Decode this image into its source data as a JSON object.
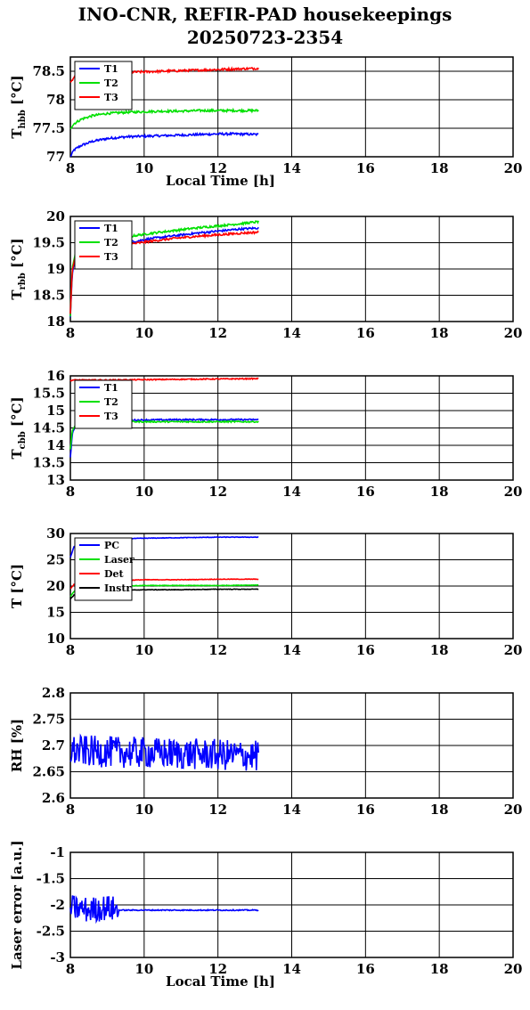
{
  "title": "INO-CNR, REFIR-PAD housekeepings",
  "subtitle": "20250723-2354",
  "chart_data": [
    {
      "type": "line",
      "ylabel_main": "T",
      "ylabel_sub": "hbb",
      "ylabel_unit": "[°C]",
      "xlabel": "Local Time [h]",
      "xlim": [
        8,
        20
      ],
      "ylim": [
        77,
        78.75
      ],
      "yticks": [
        77,
        77.5,
        78,
        78.5
      ],
      "xticks": [
        8,
        10,
        12,
        14,
        16,
        18,
        20
      ],
      "grid": true,
      "legend": "top-left",
      "series": [
        {
          "name": "T1",
          "color": "#0000ff",
          "x": [
            8.0,
            8.1,
            8.3,
            8.6,
            9.0,
            9.5,
            10.0,
            10.5,
            11.0,
            11.5,
            12.0,
            12.5,
            13.1
          ],
          "y": [
            77.0,
            77.12,
            77.2,
            77.27,
            77.32,
            77.35,
            77.36,
            77.37,
            77.38,
            77.39,
            77.4,
            77.4,
            77.39
          ],
          "noise": 0.02
        },
        {
          "name": "T2",
          "color": "#00e000",
          "x": [
            8.0,
            8.1,
            8.3,
            8.6,
            9.0,
            9.5,
            10.0,
            10.5,
            11.0,
            11.5,
            12.0,
            12.5,
            13.1
          ],
          "y": [
            77.5,
            77.58,
            77.66,
            77.72,
            77.76,
            77.78,
            77.79,
            77.8,
            77.8,
            77.81,
            77.81,
            77.81,
            77.81
          ],
          "noise": 0.02
        },
        {
          "name": "T3",
          "color": "#ff0000",
          "x": [
            8.0,
            8.1,
            8.3,
            8.6,
            9.0,
            9.5,
            10.0,
            10.5,
            11.0,
            11.5,
            12.0,
            12.5,
            13.1
          ],
          "y": [
            78.3,
            78.4,
            78.44,
            78.46,
            78.47,
            78.48,
            78.49,
            78.5,
            78.51,
            78.52,
            78.53,
            78.54,
            78.55
          ],
          "noise": 0.02
        }
      ]
    },
    {
      "type": "line",
      "ylabel_main": "T",
      "ylabel_sub": "rbb",
      "ylabel_unit": "[°C]",
      "xlabel": "",
      "xlim": [
        8,
        20
      ],
      "ylim": [
        18,
        20
      ],
      "yticks": [
        18,
        18.5,
        19,
        19.5,
        20
      ],
      "xticks": [
        8,
        10,
        12,
        14,
        16,
        18,
        20
      ],
      "grid": true,
      "legend": "top-left",
      "series": [
        {
          "name": "T1",
          "color": "#0000ff",
          "x": [
            8.0,
            8.05,
            8.15,
            8.4,
            8.8,
            9.2,
            9.7,
            10.2,
            10.8,
            11.4,
            12.0,
            12.6,
            13.1
          ],
          "y": [
            18.1,
            18.9,
            19.3,
            19.4,
            19.45,
            19.48,
            19.52,
            19.58,
            19.63,
            19.68,
            19.72,
            19.76,
            19.78
          ],
          "noise": 0.02
        },
        {
          "name": "T2",
          "color": "#00e000",
          "x": [
            8.0,
            8.05,
            8.15,
            8.4,
            8.8,
            9.2,
            9.7,
            10.2,
            10.8,
            11.4,
            12.0,
            12.6,
            13.1
          ],
          "y": [
            18.1,
            19.0,
            19.38,
            19.48,
            19.53,
            19.58,
            19.63,
            19.68,
            19.73,
            19.78,
            19.82,
            19.86,
            19.9
          ],
          "noise": 0.02
        },
        {
          "name": "T3",
          "color": "#ff0000",
          "x": [
            8.0,
            8.05,
            8.15,
            8.4,
            8.8,
            9.2,
            9.7,
            10.2,
            10.8,
            11.4,
            12.0,
            12.6,
            13.1
          ],
          "y": [
            18.15,
            18.95,
            19.28,
            19.36,
            19.4,
            19.43,
            19.48,
            19.53,
            19.58,
            19.62,
            19.65,
            19.68,
            19.7
          ],
          "noise": 0.02
        }
      ]
    },
    {
      "type": "line",
      "ylabel_main": "T",
      "ylabel_sub": "cbb",
      "ylabel_unit": "[°C]",
      "xlabel": "",
      "xlim": [
        8,
        20
      ],
      "ylim": [
        13,
        16
      ],
      "yticks": [
        13,
        13.5,
        14,
        14.5,
        15,
        15.5,
        16
      ],
      "xticks": [
        8,
        10,
        12,
        14,
        16,
        18,
        20
      ],
      "grid": true,
      "legend": "top-left",
      "series": [
        {
          "name": "T1",
          "color": "#0000ff",
          "x": [
            8.0,
            8.05,
            8.15,
            8.4,
            9.0,
            10.0,
            11.0,
            12.0,
            13.1
          ],
          "y": [
            13.65,
            14.3,
            14.65,
            14.7,
            14.72,
            14.73,
            14.74,
            14.74,
            14.74
          ],
          "noise": 0.02
        },
        {
          "name": "T2",
          "color": "#00e000",
          "x": [
            8.0,
            8.05,
            8.15,
            8.4,
            9.0,
            10.0,
            11.0,
            12.0,
            13.1
          ],
          "y": [
            13.9,
            14.4,
            14.62,
            14.66,
            14.68,
            14.68,
            14.68,
            14.68,
            14.68
          ],
          "noise": 0.02
        },
        {
          "name": "T3",
          "color": "#ff0000",
          "x": [
            8.0,
            8.05,
            8.15,
            8.4,
            9.0,
            10.0,
            11.0,
            12.0,
            13.1
          ],
          "y": [
            15.85,
            15.88,
            15.88,
            15.88,
            15.88,
            15.89,
            15.9,
            15.91,
            15.92
          ],
          "noise": 0.015
        }
      ]
    },
    {
      "type": "line",
      "ylabel_main": "T [°C]",
      "ylabel_sub": "",
      "ylabel_unit": "",
      "xlabel": "",
      "xlim": [
        8,
        20
      ],
      "ylim": [
        10,
        30
      ],
      "yticks": [
        10,
        15,
        20,
        25,
        30
      ],
      "xticks": [
        8,
        10,
        12,
        14,
        16,
        18,
        20
      ],
      "grid": true,
      "legend": "top-left",
      "series": [
        {
          "name": "PC",
          "color": "#0000ff",
          "x": [
            8.0,
            8.1,
            8.3,
            8.6,
            9.0,
            9.5,
            10.0,
            11.0,
            12.0,
            13.1
          ],
          "y": [
            25.5,
            27.5,
            28.3,
            28.6,
            28.8,
            29.0,
            29.1,
            29.2,
            29.3,
            29.3
          ],
          "noise": 0.05
        },
        {
          "name": "Laser",
          "color": "#00e000",
          "x": [
            8.0,
            8.1,
            8.3,
            8.6,
            9.0,
            9.5,
            10.0,
            11.0,
            12.0,
            13.1
          ],
          "y": [
            18.0,
            19.0,
            19.6,
            19.8,
            19.9,
            20.0,
            20.1,
            20.1,
            20.1,
            20.2
          ],
          "noise": 0.05
        },
        {
          "name": "Det",
          "color": "#ff0000",
          "x": [
            8.0,
            8.1,
            8.3,
            8.6,
            9.0,
            9.5,
            10.0,
            11.0,
            12.0,
            13.1
          ],
          "y": [
            19.5,
            20.3,
            20.8,
            21.0,
            21.1,
            21.1,
            21.2,
            21.2,
            21.3,
            21.3
          ],
          "noise": 0.05
        },
        {
          "name": "Instr",
          "color": "#000000",
          "x": [
            8.0,
            8.1,
            8.3,
            8.6,
            9.0,
            9.5,
            10.0,
            11.0,
            12.0,
            13.1
          ],
          "y": [
            17.5,
            18.3,
            18.8,
            19.0,
            19.1,
            19.2,
            19.3,
            19.3,
            19.4,
            19.4
          ],
          "noise": 0.05
        }
      ]
    },
    {
      "type": "line",
      "ylabel_main": "RH [%]",
      "ylabel_sub": "",
      "ylabel_unit": "",
      "xlabel": "",
      "xlim": [
        8,
        20
      ],
      "ylim": [
        2.6,
        2.8
      ],
      "yticks": [
        2.6,
        2.65,
        2.7,
        2.75,
        2.8
      ],
      "xticks": [
        8,
        10,
        12,
        14,
        16,
        18,
        20
      ],
      "grid": true,
      "legend": "none",
      "series": [
        {
          "name": "",
          "color": "#0000ff",
          "x": [
            8.0,
            13.1
          ],
          "y": [
            2.69,
            2.68
          ],
          "noise": 0.03,
          "noisy": true
        }
      ]
    },
    {
      "type": "line",
      "ylabel_main": "Laser error [a.u.]",
      "ylabel_sub": "",
      "ylabel_unit": "",
      "xlabel": "Local Time [h]",
      "xlim": [
        8,
        20
      ],
      "ylim": [
        -3,
        -1
      ],
      "yticks": [
        -3,
        -2.5,
        -2,
        -1.5,
        -1
      ],
      "xticks": [
        8,
        10,
        12,
        14,
        16,
        18,
        20
      ],
      "grid": true,
      "legend": "none",
      "series": [
        {
          "name": "",
          "color": "#0000ff",
          "x": [
            8.0,
            8.5,
            9.0,
            9.3,
            9.35,
            10.0,
            11.0,
            12.0,
            13.1
          ],
          "y": [
            -2.05,
            -2.1,
            -2.05,
            -2.1,
            -2.1,
            -2.1,
            -2.1,
            -2.1,
            -2.1
          ],
          "noise": 0.25,
          "noise_until": 9.3,
          "noise_after": 0.01
        }
      ]
    }
  ]
}
